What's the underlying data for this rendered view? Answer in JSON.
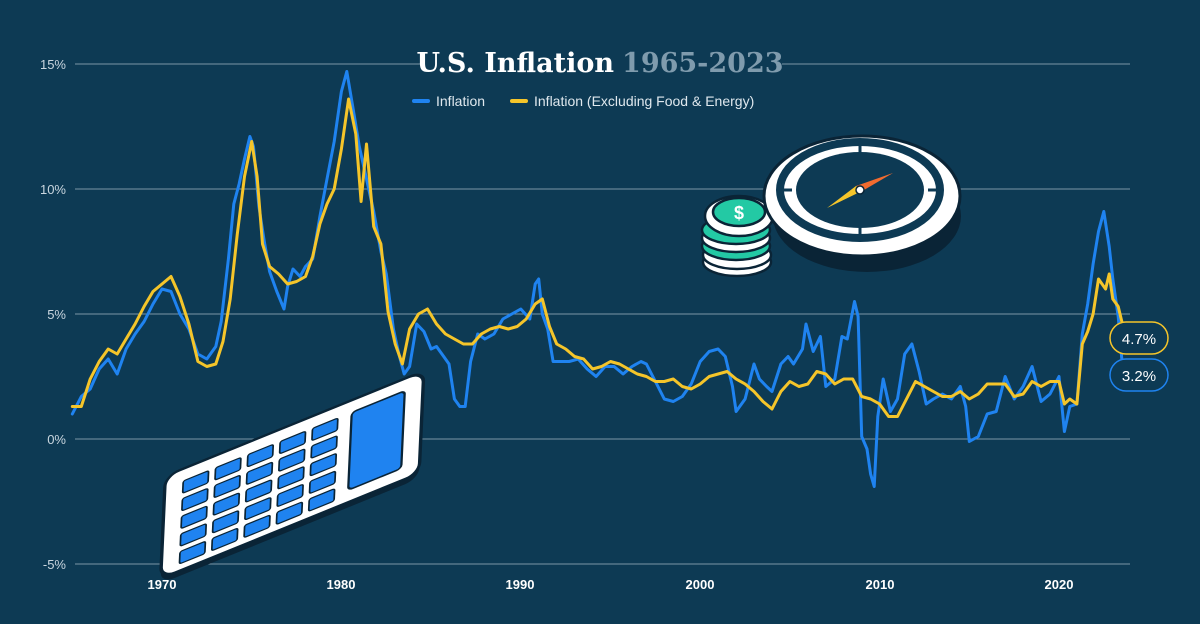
{
  "chart_data": {
    "type": "line",
    "title": "U.S. Inflation",
    "title_years": "1965-2023",
    "y_ticks": [
      "15%",
      "10%",
      "5%",
      "0%",
      "-5%"
    ],
    "x_ticks": [
      "1970",
      "1980",
      "1990",
      "2000",
      "2010",
      "2020"
    ],
    "ylim": [
      -5,
      15
    ],
    "xlim": [
      1965,
      2023.8
    ],
    "grid": "horizontal",
    "legend_position": "top-center",
    "series": [
      {
        "name": "Inflation",
        "color": "#1f83f0",
        "end_label": "3.2%",
        "points": [
          [
            1965.0,
            1.0
          ],
          [
            1965.5,
            1.7
          ],
          [
            1966.0,
            2.0
          ],
          [
            1966.5,
            2.8
          ],
          [
            1967.0,
            3.2
          ],
          [
            1967.5,
            2.6
          ],
          [
            1968.0,
            3.6
          ],
          [
            1968.5,
            4.2
          ],
          [
            1969.0,
            4.7
          ],
          [
            1969.5,
            5.4
          ],
          [
            1970.0,
            6.0
          ],
          [
            1970.5,
            5.9
          ],
          [
            1971.0,
            5.0
          ],
          [
            1971.5,
            4.4
          ],
          [
            1972.0,
            3.4
          ],
          [
            1972.5,
            3.2
          ],
          [
            1973.0,
            3.7
          ],
          [
            1973.3,
            4.7
          ],
          [
            1973.7,
            7.2
          ],
          [
            1974.0,
            9.4
          ],
          [
            1974.3,
            10.2
          ],
          [
            1974.6,
            11.2
          ],
          [
            1974.9,
            12.1
          ],
          [
            1975.1,
            11.7
          ],
          [
            1975.4,
            9.3
          ],
          [
            1975.7,
            7.9
          ],
          [
            1976.0,
            6.7
          ],
          [
            1976.4,
            5.9
          ],
          [
            1976.8,
            5.2
          ],
          [
            1977.0,
            6.1
          ],
          [
            1977.3,
            6.8
          ],
          [
            1977.7,
            6.5
          ],
          [
            1978.0,
            6.9
          ],
          [
            1978.4,
            7.2
          ],
          [
            1978.8,
            8.9
          ],
          [
            1979.2,
            10.4
          ],
          [
            1979.6,
            11.9
          ],
          [
            1980.0,
            13.9
          ],
          [
            1980.3,
            14.7
          ],
          [
            1980.7,
            13.0
          ],
          [
            1981.0,
            11.7
          ],
          [
            1981.4,
            10.4
          ],
          [
            1981.8,
            9.1
          ],
          [
            1982.2,
            7.5
          ],
          [
            1982.5,
            6.6
          ],
          [
            1982.9,
            4.4
          ],
          [
            1983.2,
            3.4
          ],
          [
            1983.5,
            2.6
          ],
          [
            1983.8,
            2.9
          ],
          [
            1984.2,
            4.6
          ],
          [
            1984.6,
            4.3
          ],
          [
            1985.0,
            3.6
          ],
          [
            1985.3,
            3.7
          ],
          [
            1985.7,
            3.3
          ],
          [
            1986.0,
            3.0
          ],
          [
            1986.3,
            1.6
          ],
          [
            1986.6,
            1.3
          ],
          [
            1986.9,
            1.3
          ],
          [
            1987.2,
            3.1
          ],
          [
            1987.6,
            4.2
          ],
          [
            1988.0,
            4.0
          ],
          [
            1988.5,
            4.2
          ],
          [
            1989.0,
            4.8
          ],
          [
            1989.5,
            5.0
          ],
          [
            1990.0,
            5.2
          ],
          [
            1990.5,
            4.8
          ],
          [
            1990.8,
            6.2
          ],
          [
            1991.0,
            6.4
          ],
          [
            1991.2,
            5.0
          ],
          [
            1991.5,
            4.4
          ],
          [
            1991.8,
            3.1
          ],
          [
            1992.2,
            3.1
          ],
          [
            1992.7,
            3.1
          ],
          [
            1993.2,
            3.2
          ],
          [
            1993.7,
            2.8
          ],
          [
            1994.2,
            2.5
          ],
          [
            1994.7,
            2.9
          ],
          [
            1995.2,
            2.9
          ],
          [
            1995.7,
            2.6
          ],
          [
            1996.2,
            2.9
          ],
          [
            1996.7,
            3.1
          ],
          [
            1997.0,
            3.0
          ],
          [
            1997.5,
            2.3
          ],
          [
            1998.0,
            1.6
          ],
          [
            1998.5,
            1.5
          ],
          [
            1999.0,
            1.7
          ],
          [
            1999.5,
            2.2
          ],
          [
            2000.0,
            3.1
          ],
          [
            2000.5,
            3.5
          ],
          [
            2001.0,
            3.6
          ],
          [
            2001.4,
            3.3
          ],
          [
            2001.8,
            2.1
          ],
          [
            2002.0,
            1.1
          ],
          [
            2002.5,
            1.6
          ],
          [
            2003.0,
            3.0
          ],
          [
            2003.3,
            2.4
          ],
          [
            2003.7,
            2.1
          ],
          [
            2004.0,
            1.9
          ],
          [
            2004.5,
            3.0
          ],
          [
            2004.9,
            3.3
          ],
          [
            2005.2,
            3.0
          ],
          [
            2005.7,
            3.6
          ],
          [
            2005.9,
            4.6
          ],
          [
            2006.3,
            3.5
          ],
          [
            2006.7,
            4.1
          ],
          [
            2007.0,
            2.1
          ],
          [
            2007.5,
            2.4
          ],
          [
            2007.9,
            4.1
          ],
          [
            2008.2,
            4.0
          ],
          [
            2008.6,
            5.5
          ],
          [
            2008.8,
            4.9
          ],
          [
            2009.0,
            0.1
          ],
          [
            2009.3,
            -0.4
          ],
          [
            2009.5,
            -1.4
          ],
          [
            2009.7,
            -1.9
          ],
          [
            2009.9,
            0.9
          ],
          [
            2010.2,
            2.4
          ],
          [
            2010.6,
            1.1
          ],
          [
            2011.0,
            1.6
          ],
          [
            2011.4,
            3.4
          ],
          [
            2011.8,
            3.8
          ],
          [
            2012.2,
            2.7
          ],
          [
            2012.6,
            1.4
          ],
          [
            2013.0,
            1.6
          ],
          [
            2013.5,
            1.8
          ],
          [
            2014.0,
            1.6
          ],
          [
            2014.5,
            2.1
          ],
          [
            2014.8,
            1.3
          ],
          [
            2015.0,
            -0.1
          ],
          [
            2015.5,
            0.1
          ],
          [
            2016.0,
            1.0
          ],
          [
            2016.5,
            1.1
          ],
          [
            2017.0,
            2.5
          ],
          [
            2017.5,
            1.6
          ],
          [
            2018.0,
            2.1
          ],
          [
            2018.5,
            2.9
          ],
          [
            2019.0,
            1.5
          ],
          [
            2019.5,
            1.8
          ],
          [
            2020.0,
            2.5
          ],
          [
            2020.3,
            0.3
          ],
          [
            2020.6,
            1.3
          ],
          [
            2021.0,
            1.4
          ],
          [
            2021.3,
            4.2
          ],
          [
            2021.6,
            5.4
          ],
          [
            2021.9,
            7.0
          ],
          [
            2022.2,
            8.3
          ],
          [
            2022.5,
            9.1
          ],
          [
            2022.8,
            7.7
          ],
          [
            2023.0,
            6.4
          ],
          [
            2023.3,
            4.9
          ],
          [
            2023.5,
            3.2
          ]
        ]
      },
      {
        "name": "Inflation (Excluding Food & Energy)",
        "color": "#f5c52a",
        "end_label": "4.7%",
        "points": [
          [
            1965.0,
            1.3
          ],
          [
            1965.5,
            1.3
          ],
          [
            1966.0,
            2.4
          ],
          [
            1966.5,
            3.1
          ],
          [
            1967.0,
            3.6
          ],
          [
            1967.5,
            3.4
          ],
          [
            1968.0,
            4.0
          ],
          [
            1968.5,
            4.6
          ],
          [
            1969.0,
            5.3
          ],
          [
            1969.5,
            5.9
          ],
          [
            1970.0,
            6.2
          ],
          [
            1970.5,
            6.5
          ],
          [
            1971.0,
            5.7
          ],
          [
            1971.5,
            4.6
          ],
          [
            1972.0,
            3.1
          ],
          [
            1972.5,
            2.9
          ],
          [
            1973.0,
            3.0
          ],
          [
            1973.4,
            3.9
          ],
          [
            1973.8,
            5.6
          ],
          [
            1974.2,
            8.2
          ],
          [
            1974.6,
            10.5
          ],
          [
            1975.0,
            11.9
          ],
          [
            1975.3,
            10.5
          ],
          [
            1975.6,
            7.8
          ],
          [
            1976.0,
            6.9
          ],
          [
            1976.5,
            6.6
          ],
          [
            1977.0,
            6.2
          ],
          [
            1977.5,
            6.3
          ],
          [
            1978.0,
            6.5
          ],
          [
            1978.4,
            7.3
          ],
          [
            1978.8,
            8.6
          ],
          [
            1979.2,
            9.4
          ],
          [
            1979.6,
            10.0
          ],
          [
            1980.0,
            11.6
          ],
          [
            1980.4,
            13.6
          ],
          [
            1980.8,
            12.2
          ],
          [
            1981.1,
            9.5
          ],
          [
            1981.4,
            11.8
          ],
          [
            1981.8,
            8.5
          ],
          [
            1982.2,
            7.8
          ],
          [
            1982.6,
            5.1
          ],
          [
            1983.0,
            3.8
          ],
          [
            1983.4,
            3.0
          ],
          [
            1983.8,
            4.4
          ],
          [
            1984.3,
            5.0
          ],
          [
            1984.8,
            5.2
          ],
          [
            1985.3,
            4.6
          ],
          [
            1985.8,
            4.2
          ],
          [
            1986.3,
            4.0
          ],
          [
            1986.8,
            3.8
          ],
          [
            1987.3,
            3.8
          ],
          [
            1987.8,
            4.2
          ],
          [
            1988.3,
            4.4
          ],
          [
            1988.8,
            4.5
          ],
          [
            1989.3,
            4.4
          ],
          [
            1989.8,
            4.5
          ],
          [
            1990.3,
            4.8
          ],
          [
            1990.8,
            5.4
          ],
          [
            1991.2,
            5.6
          ],
          [
            1991.6,
            4.5
          ],
          [
            1992.0,
            3.8
          ],
          [
            1992.5,
            3.6
          ],
          [
            1993.0,
            3.3
          ],
          [
            1993.5,
            3.2
          ],
          [
            1994.0,
            2.8
          ],
          [
            1994.5,
            2.9
          ],
          [
            1995.0,
            3.1
          ],
          [
            1995.5,
            3.0
          ],
          [
            1996.0,
            2.8
          ],
          [
            1996.5,
            2.6
          ],
          [
            1997.0,
            2.5
          ],
          [
            1997.5,
            2.3
          ],
          [
            1998.0,
            2.3
          ],
          [
            1998.5,
            2.4
          ],
          [
            1999.0,
            2.1
          ],
          [
            1999.5,
            2.0
          ],
          [
            2000.0,
            2.2
          ],
          [
            2000.5,
            2.5
          ],
          [
            2001.0,
            2.6
          ],
          [
            2001.5,
            2.7
          ],
          [
            2002.0,
            2.4
          ],
          [
            2002.5,
            2.2
          ],
          [
            2003.0,
            1.9
          ],
          [
            2003.5,
            1.5
          ],
          [
            2004.0,
            1.2
          ],
          [
            2004.5,
            1.9
          ],
          [
            2005.0,
            2.3
          ],
          [
            2005.5,
            2.1
          ],
          [
            2006.0,
            2.2
          ],
          [
            2006.5,
            2.7
          ],
          [
            2007.0,
            2.6
          ],
          [
            2007.5,
            2.2
          ],
          [
            2008.0,
            2.4
          ],
          [
            2008.5,
            2.4
          ],
          [
            2009.0,
            1.7
          ],
          [
            2009.5,
            1.6
          ],
          [
            2010.0,
            1.4
          ],
          [
            2010.5,
            0.9
          ],
          [
            2011.0,
            0.9
          ],
          [
            2011.5,
            1.6
          ],
          [
            2012.0,
            2.3
          ],
          [
            2012.5,
            2.1
          ],
          [
            2013.0,
            1.9
          ],
          [
            2013.5,
            1.7
          ],
          [
            2014.0,
            1.7
          ],
          [
            2014.5,
            1.9
          ],
          [
            2015.0,
            1.6
          ],
          [
            2015.5,
            1.8
          ],
          [
            2016.0,
            2.2
          ],
          [
            2016.5,
            2.2
          ],
          [
            2017.0,
            2.2
          ],
          [
            2017.5,
            1.7
          ],
          [
            2018.0,
            1.8
          ],
          [
            2018.5,
            2.3
          ],
          [
            2019.0,
            2.1
          ],
          [
            2019.5,
            2.3
          ],
          [
            2020.0,
            2.3
          ],
          [
            2020.3,
            1.4
          ],
          [
            2020.6,
            1.6
          ],
          [
            2021.0,
            1.4
          ],
          [
            2021.3,
            3.8
          ],
          [
            2021.6,
            4.3
          ],
          [
            2021.9,
            5.0
          ],
          [
            2022.2,
            6.4
          ],
          [
            2022.6,
            6.0
          ],
          [
            2022.8,
            6.6
          ],
          [
            2023.0,
            5.6
          ],
          [
            2023.3,
            5.3
          ],
          [
            2023.5,
            4.7
          ]
        ]
      }
    ]
  }
}
